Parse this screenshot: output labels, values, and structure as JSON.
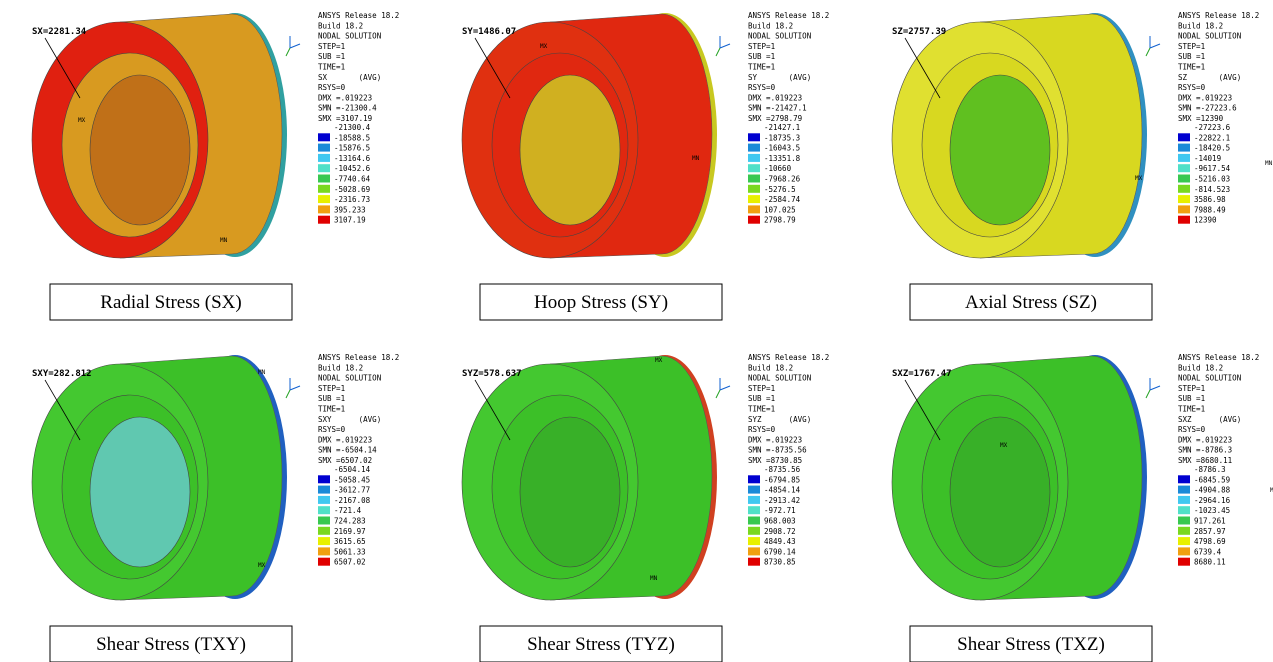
{
  "panels": [
    {
      "probe": "SX=2281.34",
      "info": [
        "ANSYS Release 18.2",
        "Build 18.2",
        "NODAL SOLUTION",
        "STEP=1",
        "SUB =1",
        "TIME=1",
        "SX       (AVG)",
        "RSYS=0",
        "DMX =.019223",
        "SMN =-21300.4",
        "SMX =3107.19"
      ],
      "legend": [
        "-21300.4",
        "-18588.5",
        "-15876.5",
        "-13164.6",
        "-10452.6",
        "-7740.64",
        "-5028.69",
        "-2316.73",
        "395.233",
        "3107.19"
      ],
      "markers": [
        "MX",
        "MN"
      ],
      "caption": "Radial Stress (SX)"
    },
    {
      "probe": "SY=1486.07",
      "info": [
        "ANSYS Release 18.2",
        "Build 18.2",
        "NODAL SOLUTION",
        "STEP=1",
        "SUB =1",
        "TIME=1",
        "SY       (AVG)",
        "RSYS=0",
        "DMX =.019223",
        "SMN =-21427.1",
        "SMX =2798.79"
      ],
      "legend": [
        "-21427.1",
        "-18735.3",
        "-16043.5",
        "-13351.8",
        "-10660",
        "-7968.26",
        "-5276.5",
        "-2584.74",
        "107.025",
        "2798.79"
      ],
      "markers": [
        "MX",
        "MN"
      ],
      "caption": "Hoop Stress (SY)"
    },
    {
      "probe": "SZ=2757.39",
      "info": [
        "ANSYS Release 18.2",
        "Build 18.2",
        "NODAL SOLUTION",
        "STEP=1",
        "SUB =1",
        "TIME=1",
        "SZ       (AVG)",
        "RSYS=0",
        "DMX =.019223",
        "SMN =-27223.6",
        "SMX =12390"
      ],
      "legend": [
        "-27223.6",
        "-22822.1",
        "-18420.5",
        "-14019",
        "-9617.54",
        "-5216.03",
        "-814.523",
        "3586.98",
        "7988.49",
        "12390"
      ],
      "markers": [
        "MX",
        "MN"
      ],
      "caption": "Axial Stress (SZ)"
    },
    {
      "probe": "SXY=282.812",
      "info": [
        "ANSYS Release 18.2",
        "Build 18.2",
        "NODAL SOLUTION",
        "STEP=1",
        "SUB =1",
        "TIME=1",
        "SXY      (AVG)",
        "RSYS=0",
        "DMX =.019223",
        "SMN =-6504.14",
        "SMX =6507.02"
      ],
      "legend": [
        "-6504.14",
        "-5058.45",
        "-3612.77",
        "-2167.08",
        "-721.4",
        "724.283",
        "2169.97",
        "3615.65",
        "5061.33",
        "6507.02"
      ],
      "markers": [
        "MX",
        "MN"
      ],
      "caption": "Shear Stress (TXY)"
    },
    {
      "probe": "SYZ=578.637",
      "info": [
        "ANSYS Release 18.2",
        "Build 18.2",
        "NODAL SOLUTION",
        "STEP=1",
        "SUB =1",
        "TIME=1",
        "SYZ      (AVG)",
        "RSYS=0",
        "DMX =.019223",
        "SMN =-8735.56",
        "SMX =8730.85"
      ],
      "legend": [
        "-8735.56",
        "-6794.85",
        "-4854.14",
        "-2913.42",
        "-972.71",
        "968.003",
        "2908.72",
        "4849.43",
        "6790.14",
        "8730.85"
      ],
      "markers": [
        "MX",
        "MN"
      ],
      "caption": "Shear Stress (TYZ)"
    },
    {
      "probe": "SXZ=1767.47",
      "info": [
        "ANSYS Release 18.2",
        "Build 18.2",
        "NODAL SOLUTION",
        "STEP=1",
        "SUB =1",
        "TIME=1",
        "SXZ      (AVG)",
        "RSYS=0",
        "DMX =.019223",
        "SMN =-8786.3",
        "SMX =8680.11"
      ],
      "legend": [
        "-8786.3",
        "-6845.59",
        "-4904.88",
        "-2964.16",
        "-1023.45",
        "917.261",
        "2857.97",
        "4798.69",
        "6739.4",
        "8680.11"
      ],
      "markers": [
        "MX",
        "MN"
      ],
      "caption": "Shear Stress (TXZ)"
    }
  ]
}
